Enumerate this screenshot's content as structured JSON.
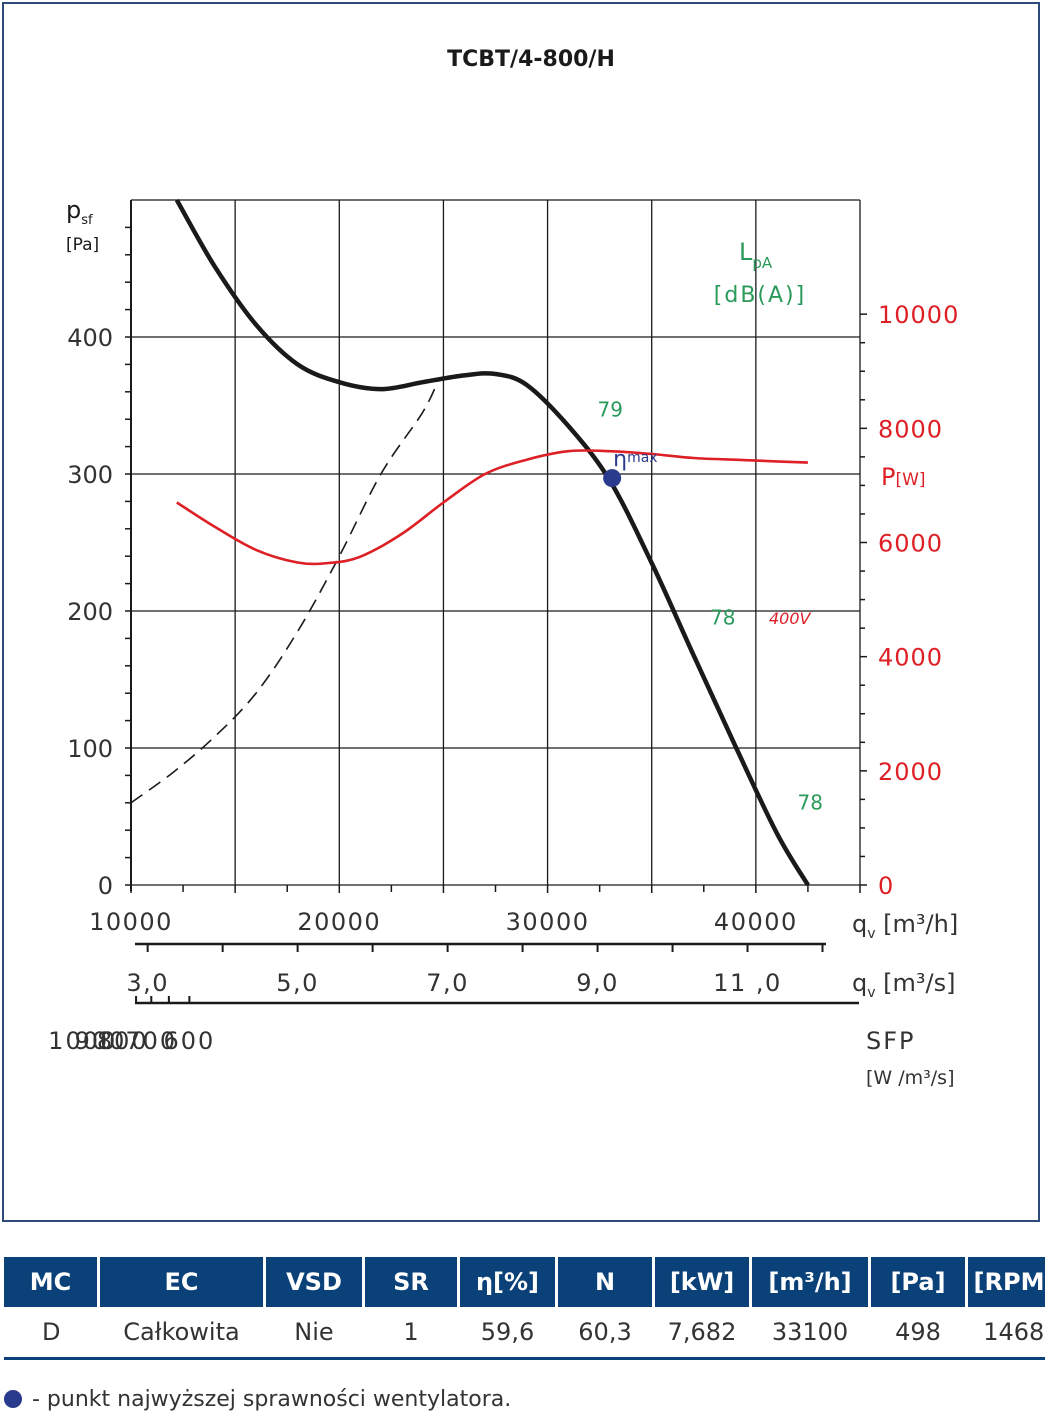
{
  "chart_data": {
    "type": "line",
    "title": "TCBT/4-800/H",
    "ylabel": {
      "main": "p",
      "sub": "sf",
      "unit": "[Pa]"
    },
    "y_ticks": [
      "0",
      "100",
      "200",
      "300",
      "400"
    ],
    "ylim": [
      0,
      500
    ],
    "power_label": {
      "main": "P",
      "unit": "[W]"
    },
    "power_ticks": [
      "0",
      "2000",
      "4000",
      "6000",
      "8000",
      "10000"
    ],
    "power_lim": [
      0,
      12000
    ],
    "noise_label": {
      "main": "L",
      "sub": "pA",
      "unit": "[dB(A)]"
    },
    "x_axis_m3h": {
      "ticks": [
        "10000",
        "20000",
        "30000",
        "40000"
      ],
      "label": "q",
      "sub": "v",
      "unit": "[m³/h]",
      "range": [
        10000,
        45000
      ]
    },
    "x_axis_m3s": {
      "ticks": [
        "3,0",
        "5,0",
        "7,0",
        "9,0",
        "11 ,0"
      ],
      "label": "q",
      "sub": "v",
      "unit": "[m³/s]"
    },
    "x_axis_sfp": {
      "ticks": [
        "1000",
        "900",
        "800",
        "700",
        "600"
      ],
      "label": "SFP",
      "unit": "[W /m³/s]"
    },
    "grid": true,
    "series": [
      {
        "role": "pressure",
        "color": "#1a1a1a",
        "x": [
          12200,
          14000,
          16000,
          18000,
          20000,
          22000,
          24000,
          26000,
          27500,
          29000,
          31000,
          33000,
          35000,
          37000,
          39000,
          41000,
          42500
        ],
        "y": [
          500,
          452,
          409,
          380,
          367,
          362,
          367,
          372,
          373,
          365,
          335,
          295,
          235,
          168,
          102,
          38,
          0
        ]
      },
      {
        "role": "system",
        "color": "#1a1a1a",
        "dashed": true,
        "x": [
          10000,
          12000,
          14000,
          16000,
          18000,
          20000,
          22000,
          24000,
          24800
        ],
        "y": [
          60,
          82,
          108,
          140,
          185,
          240,
          300,
          345,
          370
        ]
      },
      {
        "name": "400V",
        "role": "power",
        "color": "#dd1f26",
        "x": [
          12200,
          14000,
          16000,
          18000,
          19500,
          21000,
          23000,
          25000,
          27000,
          29000,
          31000,
          33000,
          35000,
          37000,
          39000,
          41000,
          42500
        ],
        "y": [
          6700,
          6280,
          5870,
          5650,
          5640,
          5750,
          6150,
          6700,
          7200,
          7450,
          7600,
          7600,
          7550,
          7480,
          7450,
          7420,
          7400
        ]
      }
    ],
    "noise_labels": [
      {
        "text": "79",
        "x": 32400,
        "y": 342
      },
      {
        "text": "78",
        "x": 37800,
        "y": 190
      },
      {
        "text": "78",
        "x": 42000,
        "y": 55
      }
    ],
    "eta_point": {
      "label": "η",
      "sub": "max",
      "x": 33100,
      "y": 297,
      "color": "#2a3a8c"
    },
    "voltage_label": "400V"
  },
  "table": {
    "headers": [
      "MC",
      "EC",
      "VSD",
      "SR",
      "η[%]",
      "N",
      "[kW]",
      "[m³/h]",
      "[Pa]",
      "[RPM]"
    ],
    "row": [
      "D",
      "Całkowita",
      "Nie",
      "1",
      "59,6",
      "60,3",
      "7,682",
      "33100",
      "498",
      "1468"
    ]
  },
  "legend": {
    "text": "- punkt najwyższej sprawności wentylatora."
  },
  "colors": {
    "header_bg": "#0b4179",
    "frame": "#2d4a7a",
    "noise": "#2a9a5a",
    "power": "#dd1f26",
    "eta": "#2a3a8c"
  }
}
